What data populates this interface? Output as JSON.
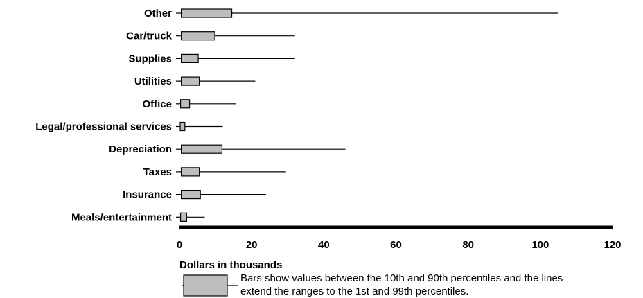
{
  "chart_data": {
    "type": "box",
    "orientation": "horizontal",
    "categories": [
      "Other",
      "Car/truck",
      "Supplies",
      "Utilities",
      "Office",
      "Legal/professional services",
      "Depreciation",
      "Taxes",
      "Insurance",
      "Meals/entertainment"
    ],
    "series": [
      {
        "values": [
          {
            "p1": 0,
            "p10": 0.5,
            "p90": 14.5,
            "p99": 105
          },
          {
            "p1": 0,
            "p10": 0.5,
            "p90": 9.8,
            "p99": 32
          },
          {
            "p1": 0,
            "p10": 0.5,
            "p90": 5.2,
            "p99": 32
          },
          {
            "p1": 0,
            "p10": 0.5,
            "p90": 5.5,
            "p99": 21
          },
          {
            "p1": 0,
            "p10": 0.3,
            "p90": 2.8,
            "p99": 15.7
          },
          {
            "p1": 0,
            "p10": 0.2,
            "p90": 1.5,
            "p99": 12
          },
          {
            "p1": 0,
            "p10": 0.5,
            "p90": 11.8,
            "p99": 46
          },
          {
            "p1": 0,
            "p10": 0.5,
            "p90": 5.5,
            "p99": 29.5
          },
          {
            "p1": 0,
            "p10": 0.5,
            "p90": 5.8,
            "p99": 24
          },
          {
            "p1": 0,
            "p10": 0.3,
            "p90": 2.0,
            "p99": 7
          }
        ]
      }
    ],
    "x_ticks": [
      "0",
      "20",
      "40",
      "60",
      "80",
      "100",
      "120"
    ],
    "xlim": [
      0,
      120
    ],
    "xlabel": "Dollars in thousands",
    "colors": {
      "box_fill": "#bdbdbd",
      "stroke": "#000000"
    },
    "legend": {
      "position": "bottom-left",
      "text_line1": "Bars show values between the 10th and 90th percentiles and the lines",
      "text_line2": "extend the ranges to the 1st and 99th percentiles."
    }
  }
}
